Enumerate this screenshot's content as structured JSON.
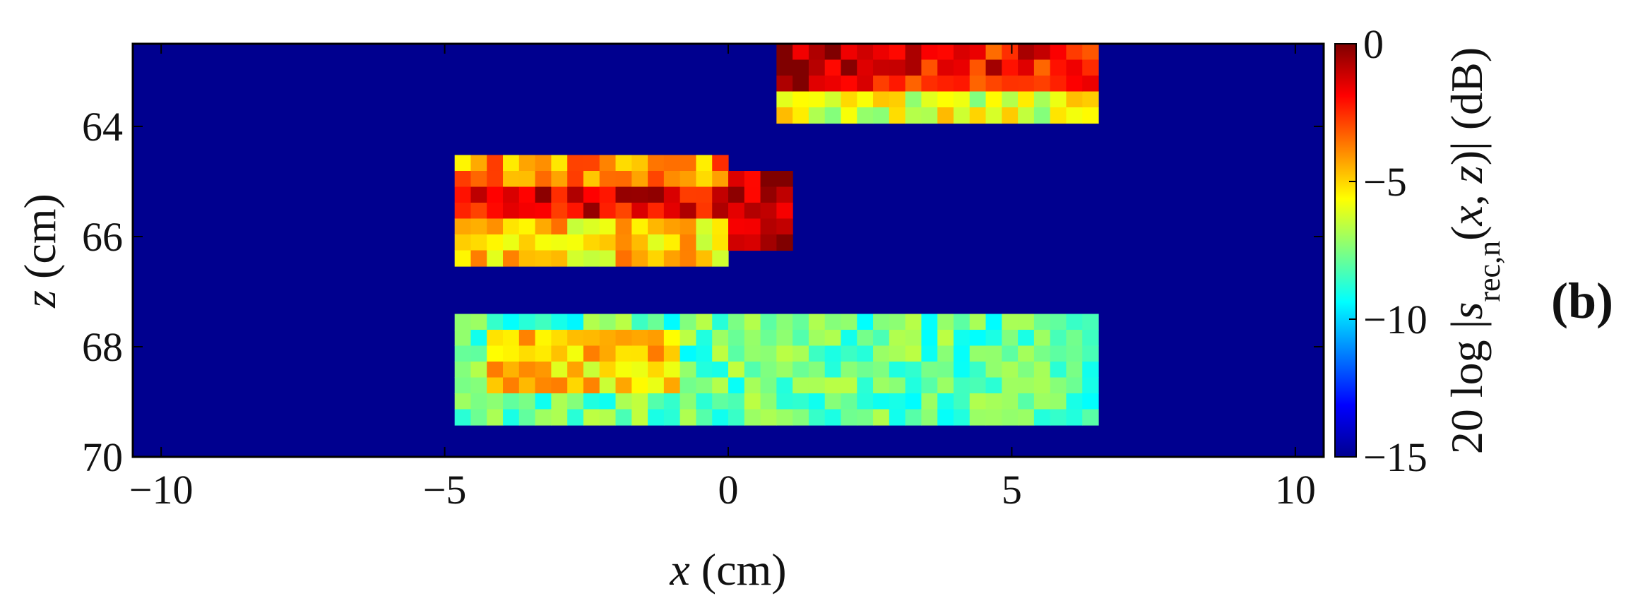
{
  "chart_data": {
    "type": "heatmap",
    "xlabel": "x (cm)",
    "ylabel": "z (cm)",
    "colorbar_label": "20 log |s_rec,n(x, z)| (dB)",
    "panel_label": "(b)",
    "x_range": [
      -10.5,
      10.5
    ],
    "z_range": [
      62.5,
      70
    ],
    "z_axis_reversed": true,
    "x_ticks": [
      -10,
      -5,
      0,
      5,
      10
    ],
    "z_ticks": [
      64,
      66,
      68,
      70
    ],
    "colorbar_ticks": [
      0,
      -5,
      -10,
      -15
    ],
    "value_range_db": [
      -15,
      0
    ],
    "colormap": "jet",
    "background_db": -15,
    "regions": [
      {
        "name": "upper-right target",
        "x": [
          0.8,
          6.4
        ],
        "z": [
          62.5,
          63.3
        ],
        "level_db": -2,
        "peaks": [
          {
            "x": [
              0.8,
              2.4
            ],
            "z": [
              62.5,
              63.3
            ],
            "level_db": -0.5
          }
        ],
        "lower_rim": {
          "z": [
            63.3,
            63.9
          ],
          "level_db": -6
        }
      },
      {
        "name": "middle target",
        "x": [
          -4.8,
          0.0
        ],
        "z": [
          65.2,
          65.8
        ],
        "level_db": -1.5,
        "upper_rim": {
          "z": [
            64.5,
            65.2
          ],
          "level_db": -4
        },
        "lower_rim": {
          "z": [
            65.8,
            66.6
          ],
          "level_db": -5
        },
        "right_cap": {
          "x": [
            0.1,
            1.0
          ],
          "z": [
            64.8,
            66.2
          ],
          "level_db": -0.5
        }
      },
      {
        "name": "lower scatter band",
        "x": [
          -4.8,
          6.5
        ],
        "z": [
          67.3,
          69.3
        ],
        "level_db": -8,
        "stronger_part": {
          "x": [
            -4.2,
            -0.8
          ],
          "z": [
            67.6,
            68.8
          ],
          "level_db": -5
        }
      }
    ]
  }
}
